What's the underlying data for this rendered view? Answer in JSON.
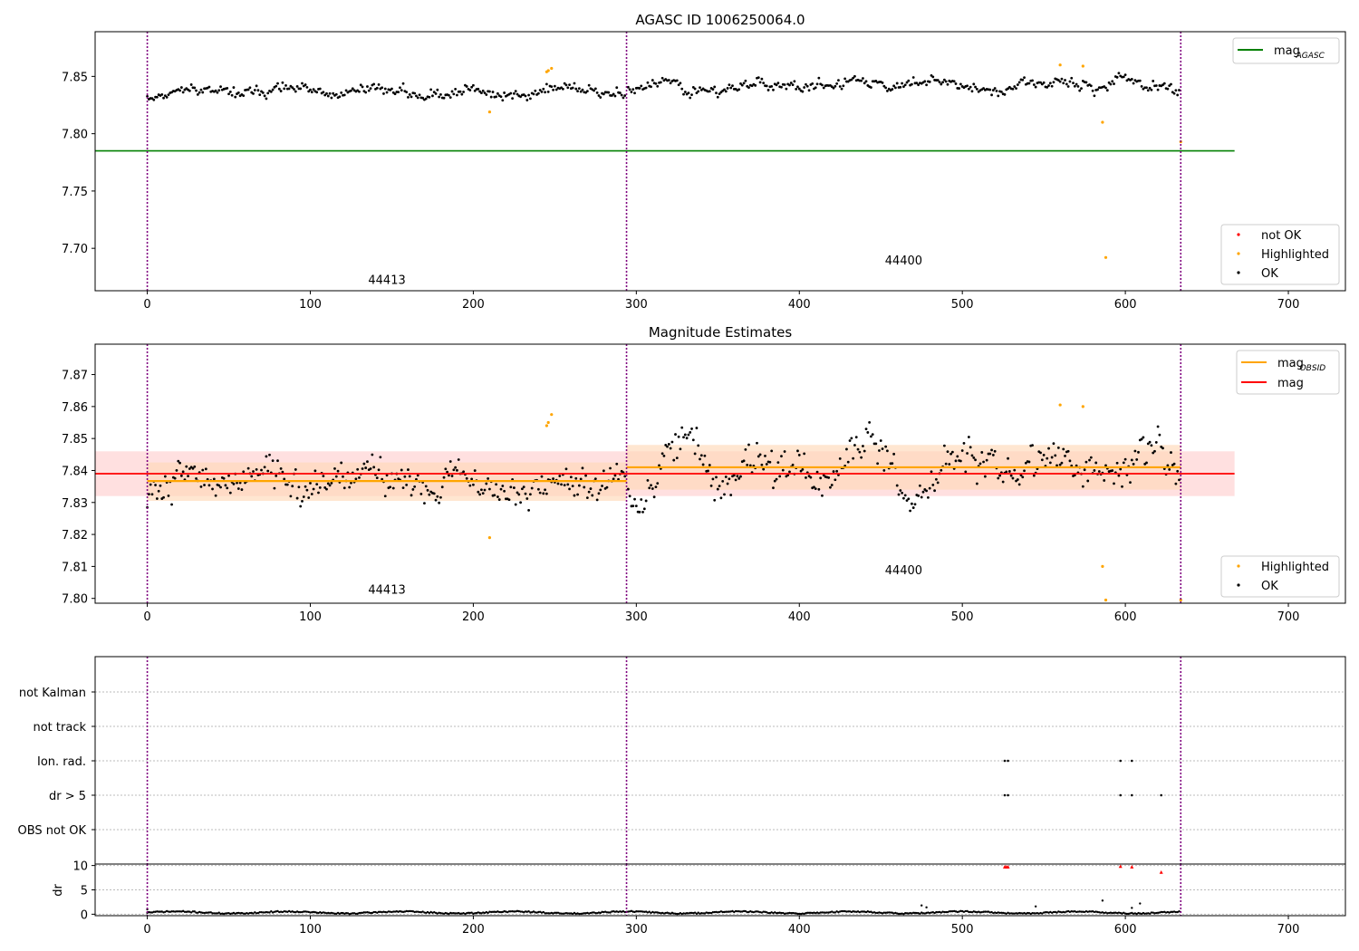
{
  "colors": {
    "ok": "#000000",
    "highlighted": "#ffa500",
    "not_ok": "#ff0000",
    "agasc_line": "#008000",
    "mag_line": "#ff0000",
    "obsid_line": "#ffa500",
    "obs_boundary": "#800080",
    "band_mag": "#ffd6d6",
    "band_obsid": "#ffd9b8"
  },
  "chart_data": [
    {
      "type": "scatter",
      "title": "AGASC ID 1006250064.0",
      "xlim": [
        -32,
        735
      ],
      "ylim": [
        7.663,
        7.889
      ],
      "xticks": [
        0,
        100,
        200,
        300,
        400,
        500,
        600,
        700
      ],
      "yticks": [
        7.7,
        7.75,
        7.8,
        7.85
      ],
      "ytick_labels": [
        "7.70",
        "7.75",
        "7.80",
        "7.85"
      ],
      "obs_boundaries": [
        0,
        294,
        634
      ],
      "obsid_labels": [
        {
          "text": "44413",
          "x": 147,
          "y": 7.669
        },
        {
          "text": "44400",
          "x": 464,
          "y": 7.686
        }
      ],
      "hlines": [
        {
          "name": "mag_AGASC",
          "y": 7.785,
          "x": [
            -32,
            667
          ],
          "color": "green"
        }
      ],
      "legend_lines": [
        {
          "label": "mag",
          "sub": "AGASC",
          "color": "green"
        }
      ],
      "legend_scatter": [
        {
          "label": "not OK",
          "color": "red"
        },
        {
          "label": "Highlighted",
          "color": "orange"
        },
        {
          "label": "OK",
          "color": "black"
        }
      ],
      "series": [
        {
          "name": "OK",
          "segments": [
            {
              "x0": 0,
              "x1": 293,
              "mean": 7.8365,
              "amp": 0.005,
              "noise": 0.0035,
              "seed": 11
            },
            {
              "x0": 295,
              "x1": 633,
              "mean": 7.842,
              "amp": 0.006,
              "noise": 0.0035,
              "seed": 23
            }
          ]
        },
        {
          "name": "Highlighted",
          "x": [
            210,
            245,
            246,
            248,
            560,
            574,
            586,
            588,
            634
          ],
          "y": [
            7.819,
            7.854,
            7.855,
            7.857,
            7.86,
            7.859,
            7.81,
            7.692,
            7.793
          ]
        }
      ]
    },
    {
      "type": "scatter",
      "title": "Magnitude Estimates",
      "xlim": [
        -32,
        735
      ],
      "ylim": [
        7.7985,
        7.8795
      ],
      "xticks": [
        0,
        100,
        200,
        300,
        400,
        500,
        600,
        700
      ],
      "yticks": [
        7.8,
        7.81,
        7.82,
        7.83,
        7.84,
        7.85,
        7.86,
        7.87
      ],
      "ytick_labels": [
        "7.80",
        "7.81",
        "7.82",
        "7.83",
        "7.84",
        "7.85",
        "7.86",
        "7.87"
      ],
      "obs_boundaries": [
        0,
        294,
        634
      ],
      "obsid_labels": [
        {
          "text": "44413",
          "x": 147,
          "y": 7.8015
        },
        {
          "text": "44400",
          "x": 464,
          "y": 7.8075
        }
      ],
      "mag": {
        "value": 7.839,
        "band": [
          7.832,
          7.846
        ],
        "x": [
          -32,
          667
        ]
      },
      "mag_obsid": [
        {
          "x": [
            0,
            294
          ],
          "value": 7.8367,
          "band": [
            7.8305,
            7.8425
          ]
        },
        {
          "x": [
            294,
            634
          ],
          "value": 7.841,
          "band": [
            7.834,
            7.848
          ]
        }
      ],
      "legend_lines": [
        {
          "label": "mag",
          "sub": "OBSID",
          "color": "orange"
        },
        {
          "label": "mag",
          "sub": "",
          "color": "red"
        }
      ],
      "legend_scatter": [
        {
          "label": "Highlighted",
          "color": "orange"
        },
        {
          "label": "OK",
          "color": "black"
        }
      ],
      "series": [
        {
          "name": "OK",
          "segments": [
            {
              "x0": 0,
              "x1": 293,
              "mean": 7.8365,
              "amp": 0.005,
              "noise": 0.0045,
              "seed": 37
            },
            {
              "x0": 295,
              "x1": 633,
              "mean": 7.8405,
              "amp": 0.007,
              "noise": 0.0045,
              "seed": 53
            }
          ]
        },
        {
          "name": "Highlighted",
          "x": [
            210,
            245,
            246,
            248,
            560,
            574,
            586,
            588,
            634
          ],
          "y": [
            7.819,
            7.854,
            7.855,
            7.8575,
            7.8605,
            7.86,
            7.81,
            7.7995,
            7.7995
          ]
        }
      ]
    },
    {
      "type": "scatter",
      "title": "",
      "xlim": [
        -32,
        735
      ],
      "categories": [
        "not Kalman",
        "not track",
        "Ion. rad.",
        "dr > 5",
        "OBS not OK"
      ],
      "obs_boundaries": [
        0,
        294,
        634
      ],
      "flags": [
        {
          "category": "Ion. rad.",
          "x": [
            526,
            528,
            597,
            604
          ]
        },
        {
          "category": "dr > 5",
          "x": [
            526,
            528,
            597,
            604,
            622
          ]
        }
      ]
    },
    {
      "type": "scatter",
      "title": "",
      "ylabel": "dr",
      "xlim": [
        -32,
        735
      ],
      "ylim": [
        -0.3,
        10.3
      ],
      "xticks": [
        0,
        100,
        200,
        300,
        400,
        500,
        600,
        700
      ],
      "yticks": [
        0,
        5,
        10
      ],
      "ytick_labels": [
        "0",
        "5",
        "10"
      ],
      "obs_boundaries": [
        0,
        294,
        634
      ],
      "series": [
        {
          "name": "OK",
          "baseline": 0.35,
          "noise": 0.25,
          "x0": 0,
          "x1": 633,
          "seed": 71,
          "extra_x": [
            475,
            478,
            545,
            586,
            604,
            609,
            0
          ],
          "extra_y": [
            1.8,
            1.4,
            1.6,
            2.8,
            1.3,
            2.2,
            1.0
          ]
        },
        {
          "name": "not OK",
          "x": [
            526,
            527,
            528,
            597,
            604,
            622
          ],
          "y": [
            9.7,
            9.7,
            9.7,
            9.8,
            9.7,
            8.6
          ]
        }
      ]
    }
  ]
}
